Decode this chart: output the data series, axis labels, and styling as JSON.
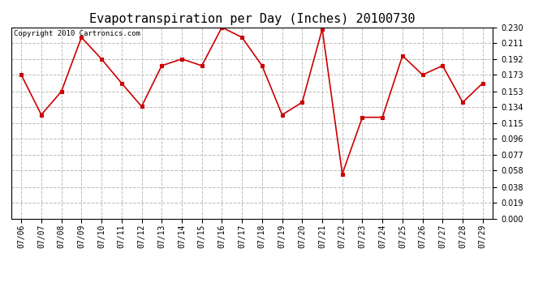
{
  "title": "Evapotranspiration per Day (Inches) 20100730",
  "copyright_text": "Copyright 2010 Cartronics.com",
  "x_labels": [
    "07/06",
    "07/07",
    "07/08",
    "07/09",
    "07/10",
    "07/11",
    "07/12",
    "07/13",
    "07/14",
    "07/15",
    "07/16",
    "07/17",
    "07/18",
    "07/19",
    "07/20",
    "07/21",
    "07/22",
    "07/23",
    "07/24",
    "07/25",
    "07/26",
    "07/27",
    "07/28",
    "07/29"
  ],
  "y_values": [
    0.173,
    0.125,
    0.153,
    0.218,
    0.192,
    0.163,
    0.135,
    0.184,
    0.192,
    0.184,
    0.23,
    0.218,
    0.184,
    0.125,
    0.14,
    0.228,
    0.054,
    0.122,
    0.122,
    0.196,
    0.173,
    0.184,
    0.14,
    0.163
  ],
  "y_ticks": [
    0.0,
    0.019,
    0.038,
    0.058,
    0.077,
    0.096,
    0.115,
    0.134,
    0.153,
    0.173,
    0.192,
    0.211,
    0.23
  ],
  "y_min": 0.0,
  "y_max": 0.23,
  "line_color": "#cc0000",
  "marker_color": "#cc0000",
  "marker": "s",
  "marker_size": 3,
  "line_width": 1.2,
  "bg_color": "#ffffff",
  "grid_color": "#bbbbbb",
  "grid_style": "--",
  "title_fontsize": 11,
  "tick_fontsize": 7,
  "copyright_fontsize": 6.5
}
